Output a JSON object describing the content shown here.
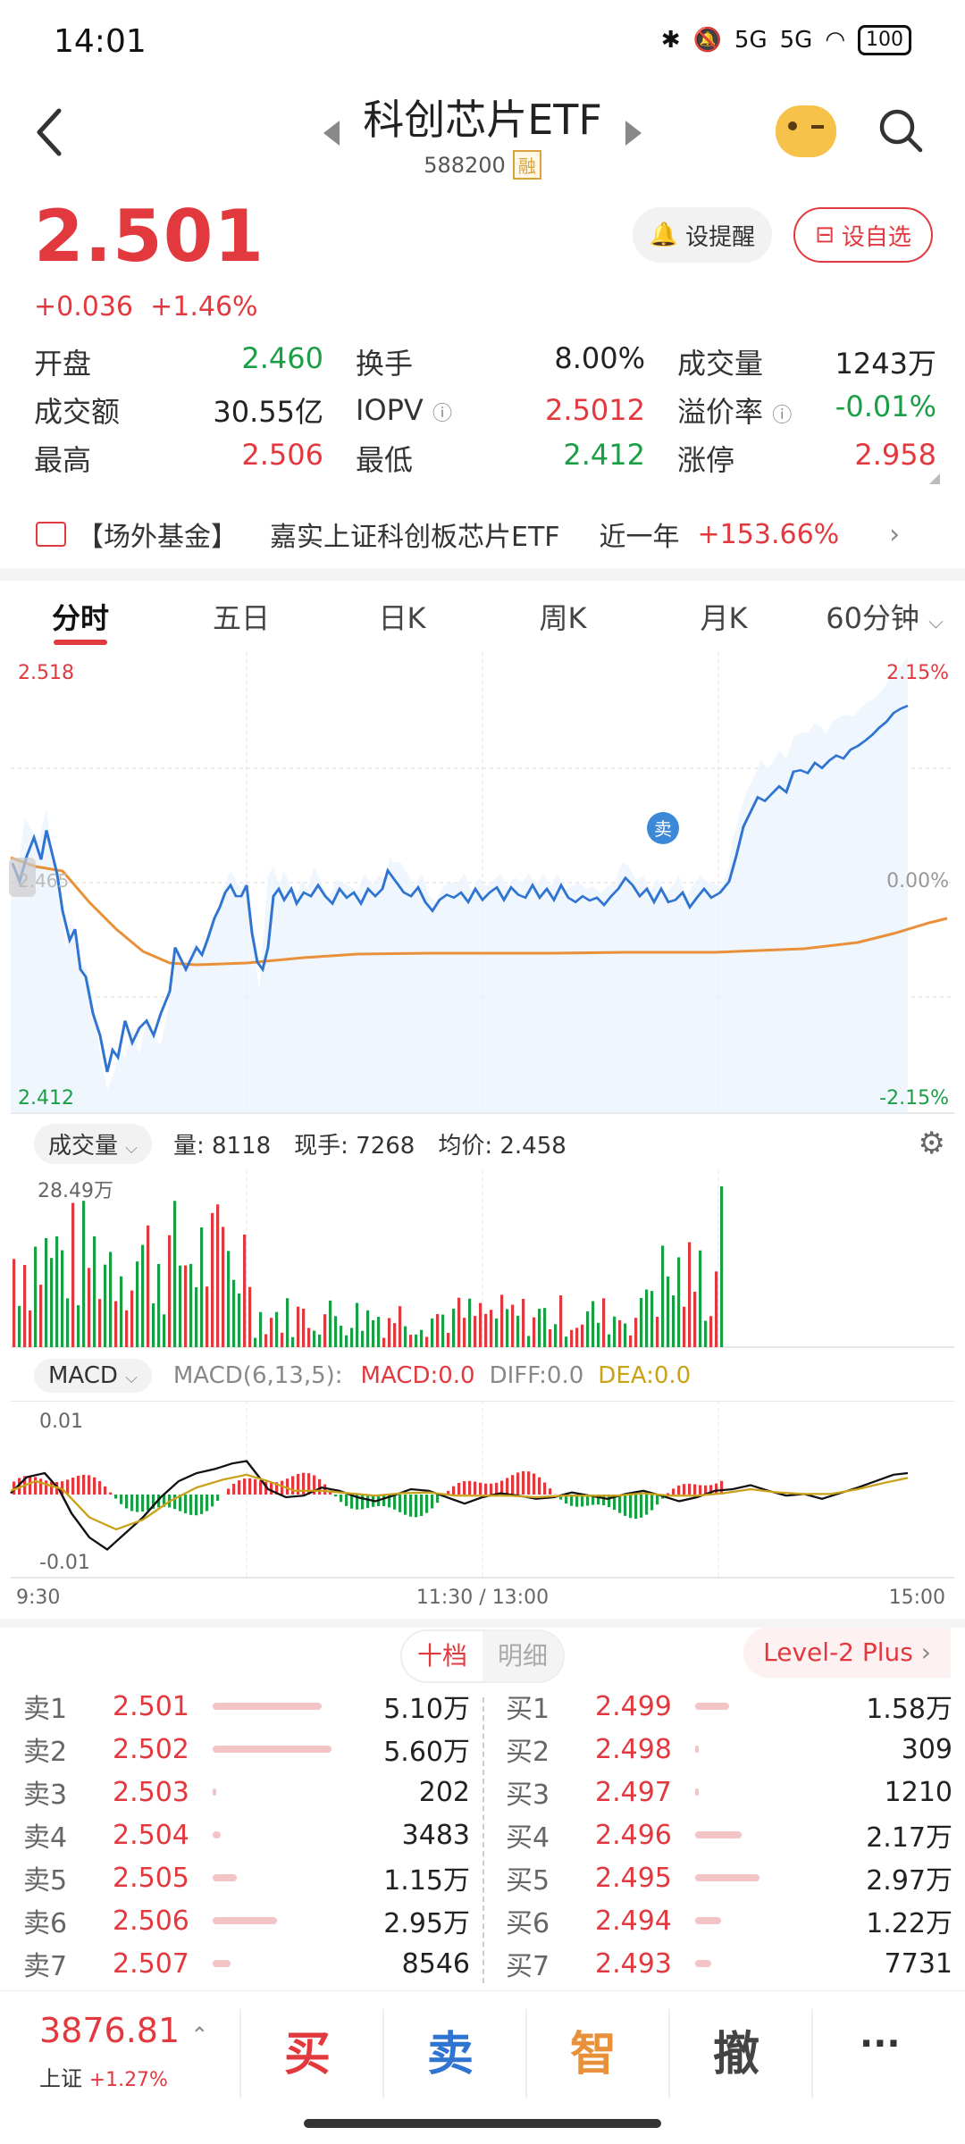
{
  "status": {
    "time": "14:01",
    "signal1": "5G",
    "signal2": "5G",
    "battery": "100"
  },
  "header": {
    "title": "科创芯片ETF",
    "code": "588200",
    "tag": "融"
  },
  "quote": {
    "price": "2.501",
    "change": "+0.036",
    "change_pct": "+1.46%",
    "alert_label": "设提醒",
    "fav_label": "设自选"
  },
  "stats": {
    "open_label": "开盘",
    "open": "2.460",
    "turnover_label": "换手",
    "turnover": "8.00%",
    "volume_label": "成交量",
    "volume": "1243万",
    "amount_label": "成交额",
    "amount": "30.55亿",
    "iopv_label": "IOPV",
    "iopv": "2.5012",
    "premium_label": "溢价率",
    "premium": "-0.01%",
    "high_label": "最高",
    "high": "2.506",
    "low_label": "最低",
    "low": "2.412",
    "limit_up_label": "涨停",
    "limit_up": "2.958"
  },
  "fund": {
    "tag": "【场外基金】",
    "name": "嘉实上证科创板芯片ETF",
    "period": "近一年",
    "return": "+153.66%"
  },
  "tabs": [
    "分时",
    "五日",
    "日K",
    "周K",
    "月K",
    "60分钟"
  ],
  "chart": {
    "top_price": "2.518",
    "bottom_price": "2.412",
    "mid_price": "2.465",
    "top_pct": "2.15%",
    "mid_pct": "0.00%",
    "bottom_pct": "-2.15%",
    "sell_marker": "卖",
    "time_start": "9:30",
    "time_mid": "11:30 / 13:00",
    "time_end": "15:00"
  },
  "volume": {
    "selector": "成交量",
    "amount": "量: 8118",
    "current": "现手: 7268",
    "avg": "均价: 2.458",
    "max": "28.49万"
  },
  "macd": {
    "selector": "MACD",
    "params": "MACD(6,13,5):",
    "macd": "MACD:0.0",
    "diff": "DIFF:0.0",
    "dea": "DEA:0.0",
    "top": "0.01",
    "bottom": "-0.01"
  },
  "orderbook": {
    "tab_active": "十档",
    "tab_inactive": "明细",
    "level2": "Level-2 Plus",
    "sell": [
      {
        "label": "卖1",
        "price": "2.501",
        "vol": "5.10万",
        "bar": 0.68
      },
      {
        "label": "卖2",
        "price": "2.502",
        "vol": "5.60万",
        "bar": 0.74
      },
      {
        "label": "卖3",
        "price": "2.503",
        "vol": "202",
        "bar": 0.01
      },
      {
        "label": "卖4",
        "price": "2.504",
        "vol": "3483",
        "bar": 0.05
      },
      {
        "label": "卖5",
        "price": "2.505",
        "vol": "1.15万",
        "bar": 0.15
      },
      {
        "label": "卖6",
        "price": "2.506",
        "vol": "2.95万",
        "bar": 0.4
      },
      {
        "label": "卖7",
        "price": "2.507",
        "vol": "8546",
        "bar": 0.11
      }
    ],
    "buy": [
      {
        "label": "买1",
        "price": "2.499",
        "vol": "1.58万",
        "bar": 0.21
      },
      {
        "label": "买2",
        "price": "2.498",
        "vol": "309",
        "bar": 0.01
      },
      {
        "label": "买3",
        "price": "2.497",
        "vol": "1210",
        "bar": 0.02
      },
      {
        "label": "买4",
        "price": "2.496",
        "vol": "2.17万",
        "bar": 0.29
      },
      {
        "label": "买5",
        "price": "2.495",
        "vol": "2.97万",
        "bar": 0.4
      },
      {
        "label": "买6",
        "price": "2.494",
        "vol": "1.22万",
        "bar": 0.16
      },
      {
        "label": "买7",
        "price": "2.493",
        "vol": "7731",
        "bar": 0.1
      }
    ]
  },
  "bottom": {
    "index_value": "3876.81",
    "index_name": "上证",
    "index_change": "+1.27%",
    "buy": "买",
    "sell": "卖",
    "smart": "智",
    "cancel": "撤",
    "more": "···"
  },
  "colors": {
    "up": "#e2393f",
    "down": "#1a9e46",
    "price_line": "#2f74d0",
    "avg_line": "#e8913a"
  }
}
